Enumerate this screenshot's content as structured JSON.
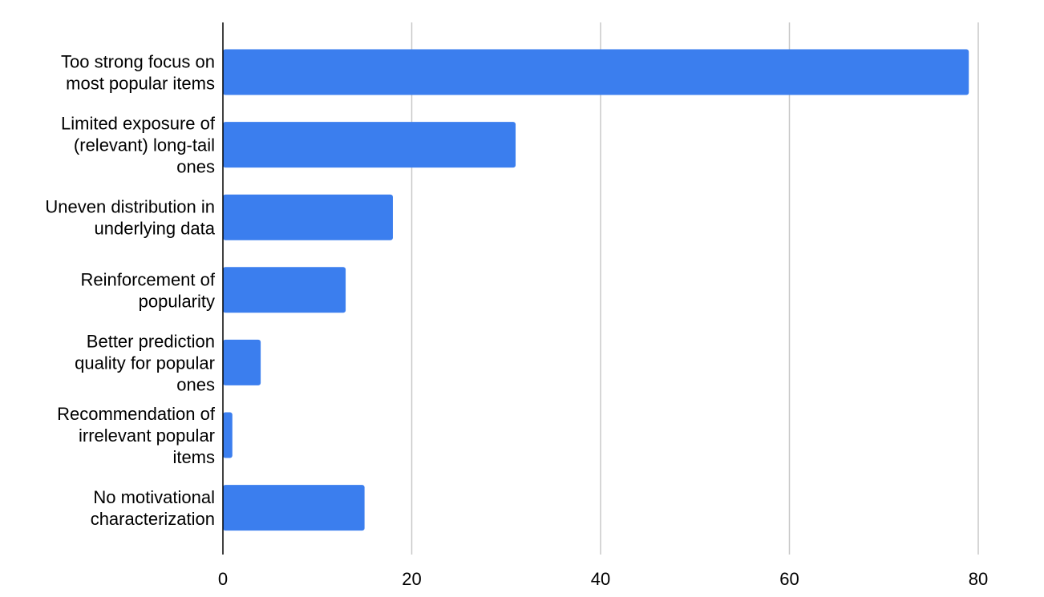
{
  "chart_data": {
    "type": "bar",
    "orientation": "horizontal",
    "categories": [
      [
        "Too strong focus on",
        "most popular items"
      ],
      [
        "Limited exposure of",
        "(relevant) long-tail",
        "ones"
      ],
      [
        "Uneven distribution in",
        "underlying data"
      ],
      [
        "Reinforcement of",
        "popularity"
      ],
      [
        "Better prediction",
        "quality for popular",
        "ones"
      ],
      [
        "Recommendation of",
        "irrelevant popular",
        "items"
      ],
      [
        "No motivational",
        "characterization"
      ]
    ],
    "values": [
      79,
      31,
      18,
      13,
      4,
      1,
      15
    ],
    "xlim": [
      0,
      80
    ],
    "xticks": [
      0,
      20,
      40,
      60,
      80
    ],
    "grid": true,
    "title": "",
    "xlabel": "",
    "ylabel": "",
    "colors": {
      "bar": "#3b7eee",
      "grid": "#c8c8c8",
      "axis": "#000000",
      "text": "#000000"
    }
  }
}
